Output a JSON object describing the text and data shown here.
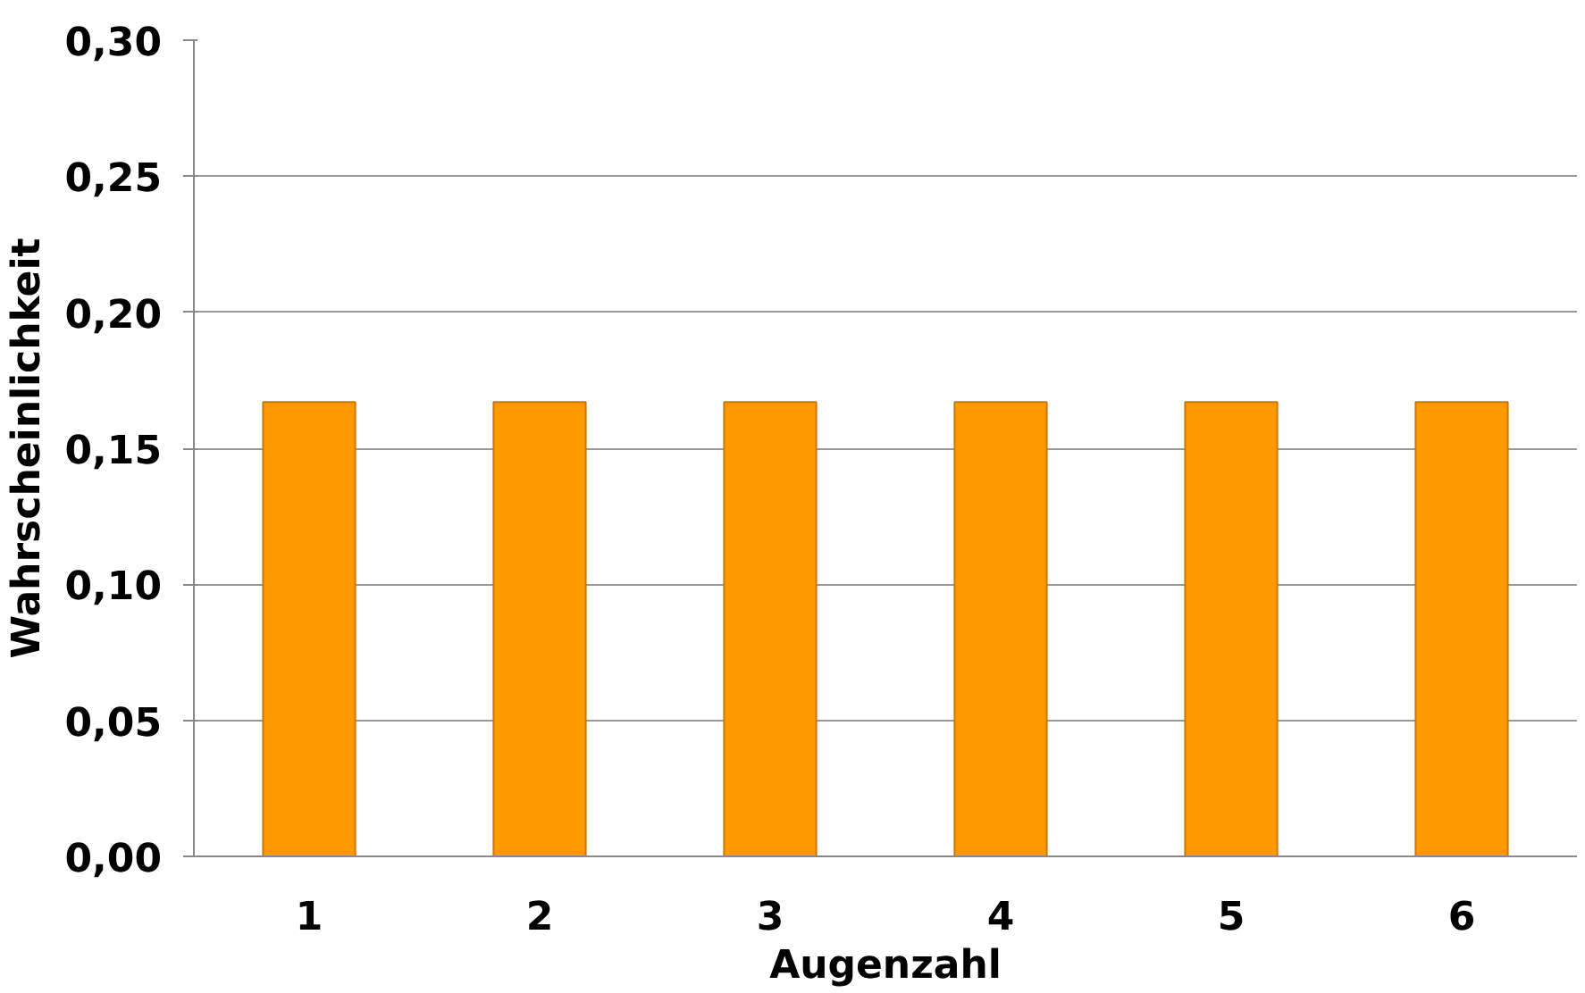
{
  "chart_data": {
    "type": "bar",
    "xlabel": "Augenzahl",
    "ylabel": "Wahrscheinlichkeit",
    "categories": [
      "1",
      "2",
      "3",
      "4",
      "5",
      "6"
    ],
    "values": [
      0.167,
      0.167,
      0.167,
      0.167,
      0.167,
      0.167
    ],
    "color": "#ff9900",
    "ylim": [
      0,
      0.3
    ],
    "yticks": [
      {
        "value": 0,
        "label": "0,00"
      },
      {
        "value": 0.05,
        "label": "0,05"
      },
      {
        "value": 0.1,
        "label": "0,10"
      },
      {
        "value": 0.15,
        "label": "0,15"
      },
      {
        "value": 0.2,
        "label": "0,20"
      },
      {
        "value": 0.25,
        "label": "0,25"
      },
      {
        "value": 0.3,
        "label": "0,30"
      }
    ],
    "grid": "y"
  }
}
